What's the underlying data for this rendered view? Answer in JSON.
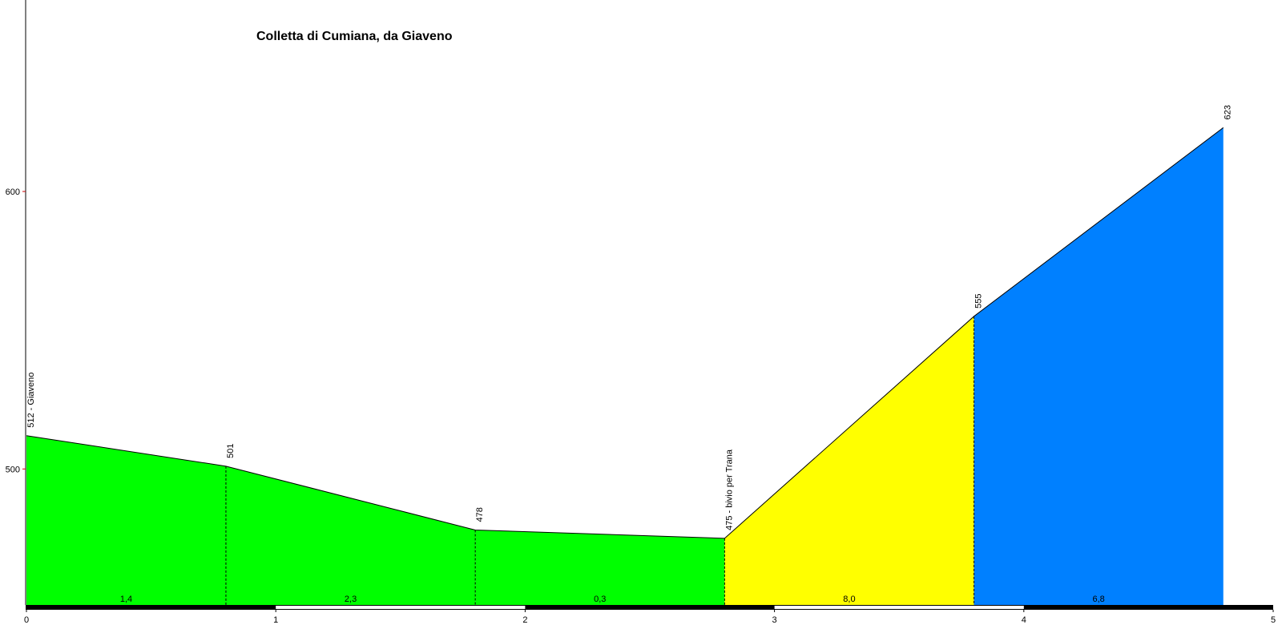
{
  "chart_data": {
    "type": "area",
    "title": "Colletta di Cumiana, da Giaveno",
    "x": [
      0,
      0.8,
      1.8,
      2.8,
      3.8,
      4.8
    ],
    "values": [
      512,
      501,
      478,
      475,
      555,
      623
    ],
    "value_labels": [
      "512 - Giaveno",
      "501",
      "478",
      "475 - bivio per Trana",
      "555",
      "623"
    ],
    "gradients": [
      1.4,
      2.3,
      0.3,
      8.0,
      6.8
    ],
    "gradient_labels": [
      "1,4",
      "2,3",
      "0,3",
      "8,0",
      "6,8"
    ],
    "segment_colors": [
      "#00ff00",
      "#00ff00",
      "#00ff00",
      "#ffff00",
      "#0080ff"
    ],
    "xlim": [
      0,
      5
    ],
    "xticks": [
      0,
      1,
      2,
      3,
      4,
      5
    ],
    "ylim": [
      451,
      669
    ],
    "yticks": [
      500,
      600
    ]
  }
}
